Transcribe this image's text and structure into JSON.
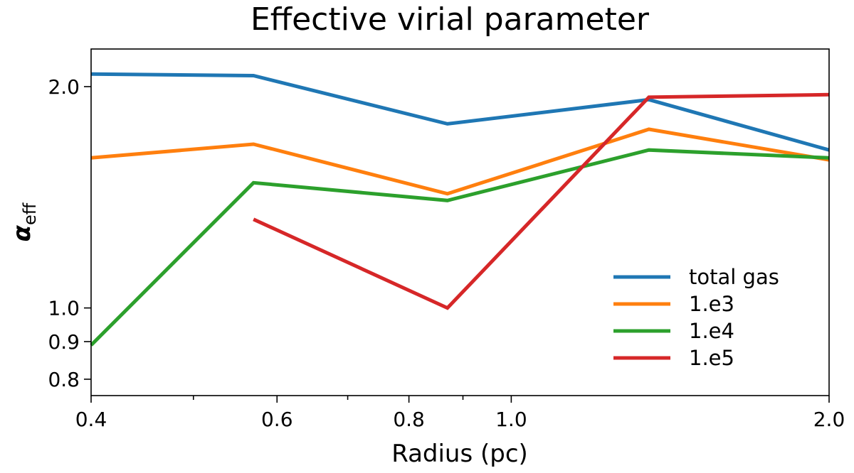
{
  "chart_data": {
    "type": "line",
    "title": "Effective virial parameter",
    "xlabel": "Radius (pc)",
    "ylabel_main": "α",
    "ylabel_sub": "eff",
    "xscale": "log",
    "yscale": "log",
    "xlim": [
      0.4,
      2.0
    ],
    "ylim": [
      0.76,
      2.25
    ],
    "x_major_ticks": [
      {
        "value": 0.4,
        "label": "0.4"
      },
      {
        "value": 0.6,
        "label": "0.6"
      },
      {
        "value": 0.8,
        "label": "0.8"
      },
      {
        "value": 1.0,
        "label": "1.0"
      },
      {
        "value": 2.0,
        "label": "2.0"
      }
    ],
    "x_minor_ticks": [
      0.5,
      0.7,
      0.9
    ],
    "y_ticks": [
      {
        "value": 0.8,
        "label": "0.8"
      },
      {
        "value": 0.9,
        "label": "0.9"
      },
      {
        "value": 1.0,
        "label": "1.0"
      },
      {
        "value": 2.0,
        "label": "2.0"
      }
    ],
    "grid": false,
    "legend_position": "lower-right",
    "series": [
      {
        "name": "total gas",
        "color": "#1f77b4",
        "points": [
          [
            0.4,
            2.08
          ],
          [
            0.57,
            2.07
          ],
          [
            0.87,
            1.78
          ],
          [
            1.35,
            1.92
          ],
          [
            2.0,
            1.64
          ]
        ]
      },
      {
        "name": "1.e3",
        "color": "#ff7f0e",
        "points": [
          [
            0.4,
            1.6
          ],
          [
            0.57,
            1.67
          ],
          [
            0.87,
            1.43
          ],
          [
            1.35,
            1.75
          ],
          [
            2.0,
            1.59
          ]
        ]
      },
      {
        "name": "1.e4",
        "color": "#2ca02c",
        "points": [
          [
            0.4,
            0.89
          ],
          [
            0.57,
            1.48
          ],
          [
            0.87,
            1.4
          ],
          [
            1.35,
            1.64
          ],
          [
            2.0,
            1.6
          ]
        ]
      },
      {
        "name": "1.e5",
        "color": "#d62728",
        "points": [
          [
            0.57,
            1.32
          ],
          [
            0.87,
            1.0
          ],
          [
            1.35,
            1.935
          ],
          [
            2.0,
            1.95
          ]
        ]
      }
    ]
  }
}
